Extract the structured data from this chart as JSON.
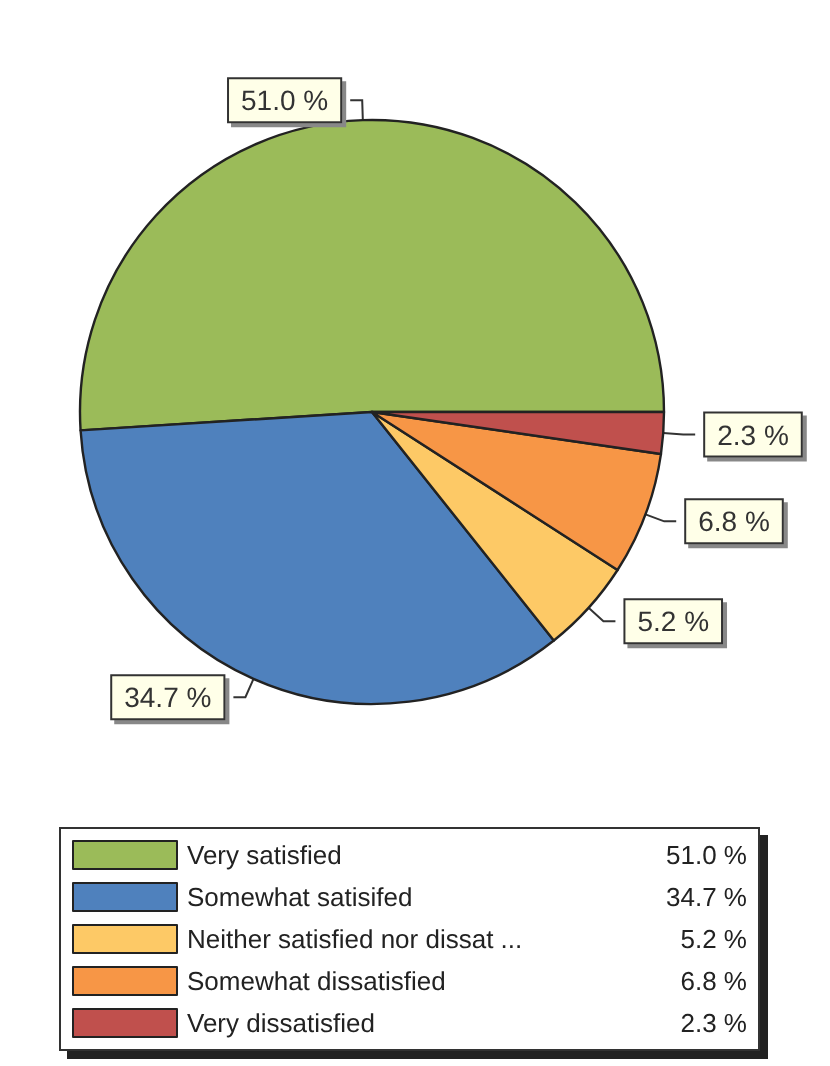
{
  "chart_data": {
    "type": "pie",
    "categories": [
      "Very satisfied",
      "Somewhat satisifed",
      "Neither satisfied nor dissat ...",
      "Somewhat dissatisfied",
      "Very dissatisfied"
    ],
    "values": [
      51.0,
      34.7,
      5.2,
      6.8,
      2.3
    ],
    "colors": [
      "#9bbb59",
      "#4f81bd",
      "#fdc966",
      "#f79646",
      "#c0504d"
    ],
    "value_labels": [
      "51.0 %",
      "34.7 %",
      "5.2 %",
      "6.8 %",
      "2.3 %"
    ],
    "legend": "bottom"
  }
}
